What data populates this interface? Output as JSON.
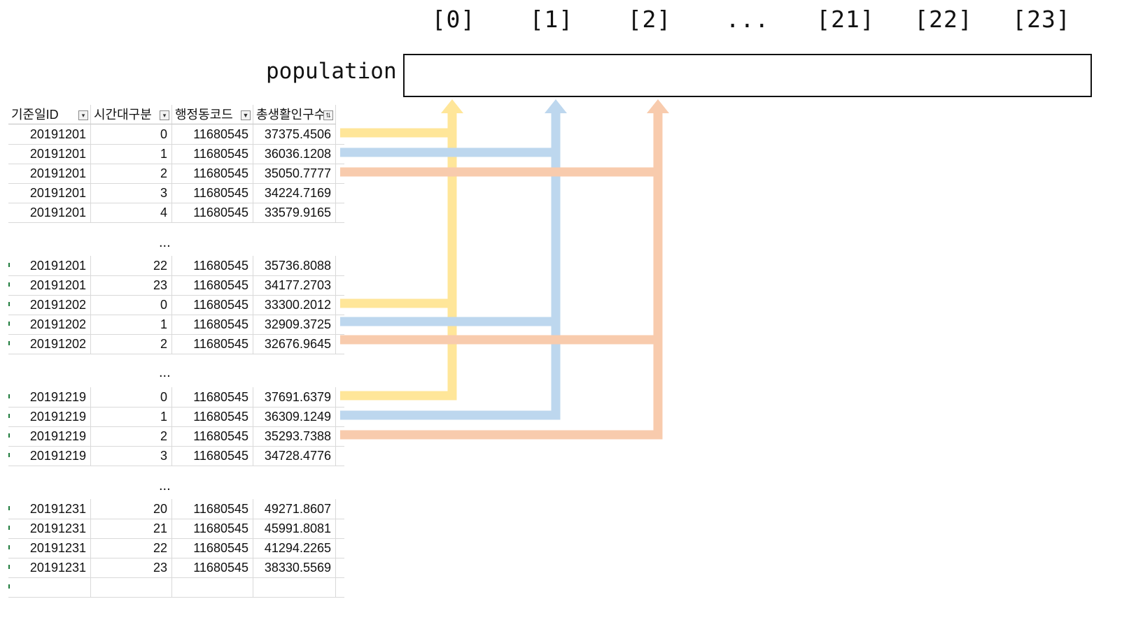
{
  "array": {
    "label": "population",
    "indices": [
      "[0]",
      "[1]",
      "[2]",
      "...",
      "[21]",
      "[22]",
      "[23]"
    ]
  },
  "table": {
    "headers": [
      "기준일ID",
      "시간대구분",
      "행정동코드",
      "총생활인구수"
    ],
    "groups": [
      [
        [
          "20191201",
          "0",
          "11680545",
          "37375.4506"
        ],
        [
          "20191201",
          "1",
          "11680545",
          "36036.1208"
        ],
        [
          "20191201",
          "2",
          "11680545",
          "35050.7777"
        ],
        [
          "20191201",
          "3",
          "11680545",
          "34224.7169"
        ],
        [
          "20191201",
          "4",
          "11680545",
          "33579.9165"
        ]
      ],
      [
        [
          "20191201",
          "22",
          "11680545",
          "35736.8088"
        ],
        [
          "20191201",
          "23",
          "11680545",
          "34177.2703"
        ],
        [
          "20191202",
          "0",
          "11680545",
          "33300.2012"
        ],
        [
          "20191202",
          "1",
          "11680545",
          "32909.3725"
        ],
        [
          "20191202",
          "2",
          "11680545",
          "32676.9645"
        ]
      ],
      [
        [
          "20191219",
          "0",
          "11680545",
          "37691.6379"
        ],
        [
          "20191219",
          "1",
          "11680545",
          "36309.1249"
        ],
        [
          "20191219",
          "2",
          "11680545",
          "35293.7388"
        ],
        [
          "20191219",
          "3",
          "11680545",
          "34728.4776"
        ]
      ],
      [
        [
          "20191231",
          "20",
          "11680545",
          "49271.8607"
        ],
        [
          "20191231",
          "21",
          "11680545",
          "45991.8081"
        ],
        [
          "20191231",
          "22",
          "11680545",
          "41294.2265"
        ],
        [
          "20191231",
          "23",
          "11680545",
          "38330.5569"
        ],
        [
          "",
          "",
          "",
          ""
        ]
      ]
    ],
    "ellipsis": "..."
  },
  "colors": {
    "hour0": "#ffe699",
    "hour1": "#bdd7ee",
    "hour2": "#f8cbad"
  }
}
